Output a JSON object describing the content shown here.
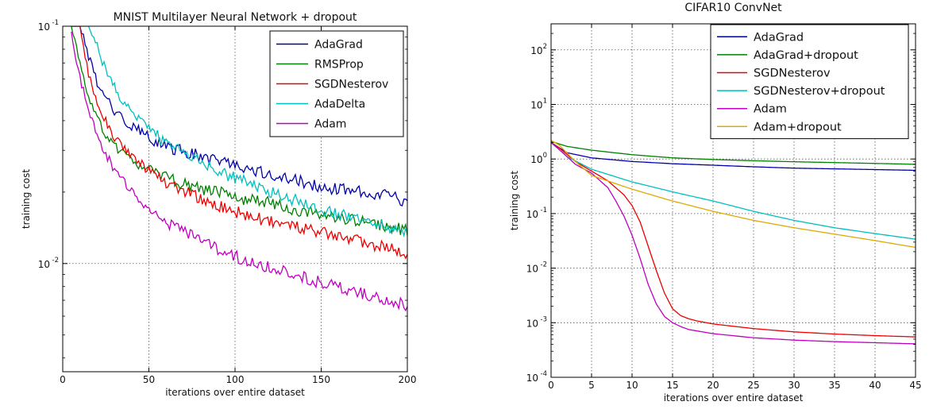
{
  "chart_data": [
    {
      "type": "line",
      "title": "MNIST Multilayer Neural Network + dropout",
      "xlabel": "iterations over entire dataset",
      "ylabel": "training cost",
      "xlim": [
        0,
        200
      ],
      "ylim": [
        0.0035,
        0.1
      ],
      "yscale": "log",
      "grid": true,
      "legend_position": "top-right",
      "x_ticks": [
        {
          "value": 0,
          "label": "0"
        },
        {
          "value": 50,
          "label": "50"
        },
        {
          "value": 100,
          "label": "100"
        },
        {
          "value": 150,
          "label": "150"
        },
        {
          "value": 200,
          "label": "200"
        }
      ],
      "y_ticks": [
        {
          "value": 0.1,
          "base": "10",
          "exp": "-1"
        },
        {
          "value": 0.01,
          "base": "10",
          "exp": "-2"
        }
      ],
      "x": [
        5,
        10,
        15,
        20,
        25,
        30,
        40,
        50,
        60,
        75,
        90,
        100,
        120,
        140,
        150,
        160,
        175,
        185,
        200
      ],
      "series": [
        {
          "name": "AdaGrad",
          "color": "#0000aa",
          "values": [
            0.1,
            0.1,
            0.075,
            0.058,
            0.05,
            0.044,
            0.038,
            0.034,
            0.031,
            0.029,
            0.027,
            0.026,
            0.024,
            0.022,
            0.021,
            0.0205,
            0.02,
            0.0195,
            0.0183
          ]
        },
        {
          "name": "RMSProp",
          "color": "#008000",
          "values": [
            0.1,
            0.07,
            0.05,
            0.041,
            0.035,
            0.031,
            0.027,
            0.025,
            0.023,
            0.021,
            0.02,
            0.019,
            0.018,
            0.0165,
            0.016,
            0.0155,
            0.015,
            0.0145,
            0.0137
          ]
        },
        {
          "name": "SGDNesterov",
          "color": "#ee0000",
          "values": [
            0.1,
            0.1,
            0.062,
            0.048,
            0.04,
            0.034,
            0.028,
            0.025,
            0.022,
            0.0195,
            0.0175,
            0.0165,
            0.015,
            0.014,
            0.0135,
            0.013,
            0.0123,
            0.0118,
            0.011
          ]
        },
        {
          "name": "AdaDelta",
          "color": "#00bfbf",
          "values": [
            0.1,
            0.1,
            0.1,
            0.082,
            0.065,
            0.055,
            0.043,
            0.037,
            0.032,
            0.028,
            0.0245,
            0.023,
            0.02,
            0.018,
            0.017,
            0.0162,
            0.0152,
            0.0145,
            0.0132
          ]
        },
        {
          "name": "Adam",
          "color": "#bf00bf",
          "values": [
            0.095,
            0.06,
            0.045,
            0.035,
            0.029,
            0.025,
            0.02,
            0.017,
            0.015,
            0.013,
            0.0115,
            0.0107,
            0.0096,
            0.0087,
            0.0083,
            0.0079,
            0.0074,
            0.0071,
            0.0067
          ]
        }
      ]
    },
    {
      "type": "line",
      "title": "CIFAR10 ConvNet",
      "xlabel": "iterations over entire dataset",
      "ylabel": "training cost",
      "xlim": [
        0,
        45
      ],
      "ylim": [
        0.0001,
        300
      ],
      "yscale": "log",
      "grid": true,
      "legend_position": "top-right",
      "x_ticks": [
        {
          "value": 0,
          "label": "0"
        },
        {
          "value": 5,
          "label": "5"
        },
        {
          "value": 10,
          "label": "10"
        },
        {
          "value": 15,
          "label": "15"
        },
        {
          "value": 20,
          "label": "20"
        },
        {
          "value": 25,
          "label": "25"
        },
        {
          "value": 30,
          "label": "30"
        },
        {
          "value": 35,
          "label": "35"
        },
        {
          "value": 40,
          "label": "40"
        },
        {
          "value": 45,
          "label": "45"
        }
      ],
      "y_ticks": [
        {
          "value": 0.0001,
          "base": "10",
          "exp": "-4"
        },
        {
          "value": 0.001,
          "base": "10",
          "exp": "-3"
        },
        {
          "value": 0.01,
          "base": "10",
          "exp": "-2"
        },
        {
          "value": 0.1,
          "base": "10",
          "exp": "-1"
        },
        {
          "value": 1,
          "base": "10",
          "exp": "0"
        },
        {
          "value": 10,
          "base": "10",
          "exp": "1"
        },
        {
          "value": 100,
          "base": "10",
          "exp": "2"
        }
      ],
      "series": [
        {
          "name": "AdaGrad",
          "color": "#0000aa",
          "x": [
            0,
            2,
            5,
            10,
            15,
            20,
            25,
            30,
            35,
            40,
            45
          ],
          "values": [
            2.0,
            1.3,
            1.05,
            0.9,
            0.82,
            0.77,
            0.72,
            0.68,
            0.66,
            0.64,
            0.62
          ]
        },
        {
          "name": "AdaGrad+dropout",
          "color": "#008000",
          "x": [
            0,
            2,
            5,
            10,
            15,
            20,
            25,
            30,
            35,
            40,
            45
          ],
          "values": [
            2.1,
            1.7,
            1.45,
            1.2,
            1.05,
            0.98,
            0.93,
            0.89,
            0.86,
            0.83,
            0.8
          ]
        },
        {
          "name": "SGDNesterov",
          "color": "#ee0000",
          "x": [
            0,
            1,
            3,
            5,
            7,
            9,
            10,
            11,
            12,
            13,
            14,
            15,
            16,
            17,
            18,
            20,
            25,
            30,
            35,
            40,
            45
          ],
          "values": [
            2.0,
            1.6,
            0.9,
            0.6,
            0.4,
            0.22,
            0.14,
            0.07,
            0.025,
            0.009,
            0.0035,
            0.0018,
            0.00135,
            0.00118,
            0.00108,
            0.00095,
            0.00078,
            0.00068,
            0.00062,
            0.00058,
            0.00055
          ]
        },
        {
          "name": "SGDNesterov+dropout",
          "color": "#00bfbf",
          "x": [
            0,
            2,
            5,
            10,
            15,
            20,
            25,
            30,
            35,
            40,
            45
          ],
          "values": [
            2.0,
            1.1,
            0.65,
            0.38,
            0.25,
            0.17,
            0.11,
            0.075,
            0.055,
            0.043,
            0.034
          ]
        },
        {
          "name": "Adam",
          "color": "#bf00bf",
          "x": [
            0,
            1,
            3,
            5,
            7,
            8,
            9,
            10,
            11,
            12,
            13,
            14,
            15,
            16,
            17,
            20,
            25,
            30,
            35,
            40,
            45
          ],
          "values": [
            2.0,
            1.5,
            0.8,
            0.55,
            0.3,
            0.17,
            0.09,
            0.04,
            0.015,
            0.005,
            0.0022,
            0.0013,
            0.001,
            0.00085,
            0.00075,
            0.00063,
            0.00053,
            0.00048,
            0.00045,
            0.00043,
            0.00041
          ]
        },
        {
          "name": "Adam+dropout",
          "color": "#ddaa00",
          "x": [
            0,
            1,
            3,
            5,
            10,
            15,
            20,
            25,
            30,
            35,
            40,
            45
          ],
          "values": [
            2.2,
            1.8,
            0.9,
            0.5,
            0.28,
            0.17,
            0.11,
            0.075,
            0.055,
            0.042,
            0.032,
            0.024
          ]
        }
      ]
    }
  ]
}
